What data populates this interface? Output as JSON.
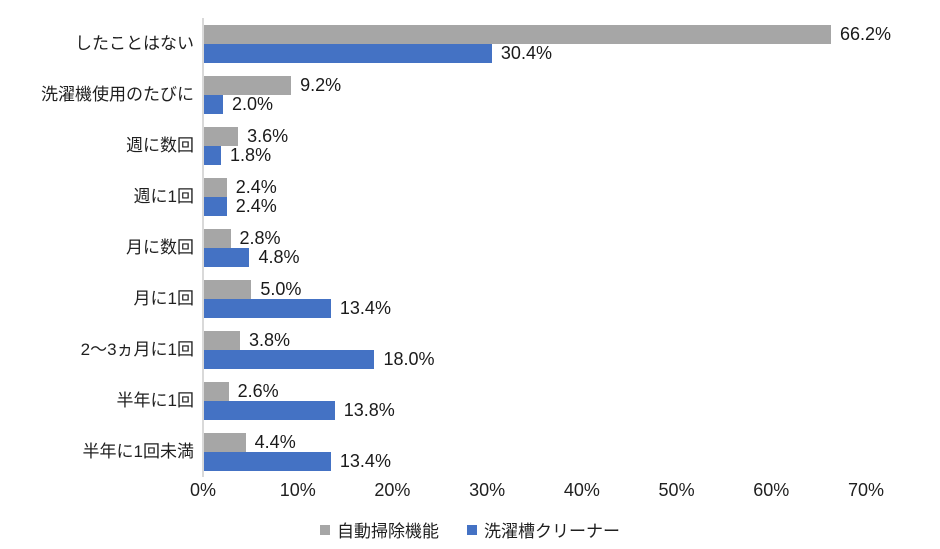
{
  "chart": {
    "background_color": "#ffffff",
    "text_color": "#1f1f1f",
    "axis_line_color": "#d9d9d9"
  },
  "chart_data": {
    "type": "bar",
    "orientation": "horizontal",
    "title": "",
    "xlabel": "",
    "ylabel": "",
    "xlim": [
      0,
      70
    ],
    "x_ticks": [
      "0%",
      "10%",
      "20%",
      "30%",
      "40%",
      "50%",
      "60%",
      "70%"
    ],
    "grid": false,
    "legend_position": "bottom",
    "data_label_format": "one_decimal_percent",
    "categories": [
      "したことはない",
      "洗濯機使用のたびに",
      "週に数回",
      "週に1回",
      "月に数回",
      "月に1回",
      "2～3ヵ月に1回",
      "半年に1回",
      "半年に1回未満"
    ],
    "series": [
      {
        "key": "auto-clean-function",
        "name": "自動掃除機能",
        "color": "#A6A6A6",
        "values": [
          66.2,
          9.2,
          3.6,
          2.4,
          2.8,
          5.0,
          3.8,
          2.6,
          4.4
        ]
      },
      {
        "key": "tub-cleaner",
        "name": "洗濯槽クリーナー",
        "color": "#4472C4",
        "values": [
          30.4,
          2.0,
          1.8,
          2.4,
          4.8,
          13.4,
          18.0,
          13.8,
          13.4
        ]
      }
    ]
  }
}
